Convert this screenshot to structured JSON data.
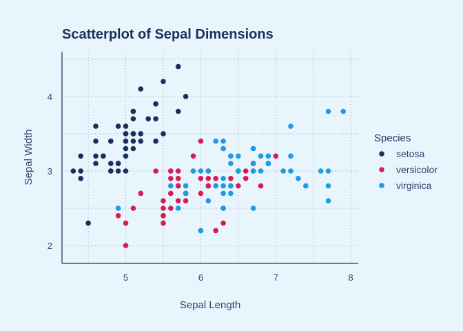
{
  "chart_data": {
    "type": "scatter",
    "title": "Scatterplot of Sepal Dimensions",
    "xlabel": "Sepal Length",
    "ylabel": "Sepal Width",
    "xlim": [
      4.15,
      8.1
    ],
    "ylim": [
      1.76,
      4.6
    ],
    "x_ticks": [
      5,
      6,
      7,
      8
    ],
    "y_ticks": [
      2,
      3,
      4
    ],
    "grid": true,
    "legend": {
      "title": "Species",
      "position": "right"
    },
    "series": [
      {
        "name": "setosa",
        "color": "#1b2f5c",
        "points": [
          [
            5.1,
            3.5
          ],
          [
            4.9,
            3.0
          ],
          [
            4.7,
            3.2
          ],
          [
            4.6,
            3.1
          ],
          [
            5.0,
            3.6
          ],
          [
            5.4,
            3.9
          ],
          [
            4.6,
            3.4
          ],
          [
            5.0,
            3.4
          ],
          [
            4.4,
            2.9
          ],
          [
            4.9,
            3.1
          ],
          [
            5.4,
            3.7
          ],
          [
            4.8,
            3.4
          ],
          [
            4.8,
            3.0
          ],
          [
            4.3,
            3.0
          ],
          [
            5.8,
            4.0
          ],
          [
            5.7,
            4.4
          ],
          [
            5.4,
            3.9
          ],
          [
            5.1,
            3.5
          ],
          [
            5.7,
            3.8
          ],
          [
            5.1,
            3.8
          ],
          [
            5.4,
            3.4
          ],
          [
            5.1,
            3.7
          ],
          [
            4.6,
            3.6
          ],
          [
            5.1,
            3.3
          ],
          [
            4.8,
            3.4
          ],
          [
            5.0,
            3.0
          ],
          [
            5.0,
            3.4
          ],
          [
            5.2,
            3.5
          ],
          [
            5.2,
            3.4
          ],
          [
            4.7,
            3.2
          ],
          [
            4.8,
            3.1
          ],
          [
            5.4,
            3.4
          ],
          [
            5.2,
            4.1
          ],
          [
            5.5,
            4.2
          ],
          [
            4.9,
            3.1
          ],
          [
            5.0,
            3.2
          ],
          [
            5.5,
            3.5
          ],
          [
            4.9,
            3.6
          ],
          [
            4.4,
            3.0
          ],
          [
            5.1,
            3.4
          ],
          [
            5.0,
            3.5
          ],
          [
            4.5,
            2.3
          ],
          [
            4.4,
            3.2
          ],
          [
            5.0,
            3.5
          ],
          [
            5.1,
            3.8
          ],
          [
            4.8,
            3.0
          ],
          [
            5.1,
            3.8
          ],
          [
            4.6,
            3.2
          ],
          [
            5.3,
            3.7
          ],
          [
            5.0,
            3.3
          ]
        ]
      },
      {
        "name": "versicolor",
        "color": "#d81b50",
        "points": [
          [
            7.0,
            3.2
          ],
          [
            6.4,
            3.2
          ],
          [
            6.9,
            3.1
          ],
          [
            5.5,
            2.3
          ],
          [
            6.5,
            2.8
          ],
          [
            5.7,
            2.8
          ],
          [
            6.3,
            3.3
          ],
          [
            4.9,
            2.4
          ],
          [
            6.6,
            2.9
          ],
          [
            5.2,
            2.7
          ],
          [
            5.0,
            2.0
          ],
          [
            5.9,
            3.0
          ],
          [
            6.0,
            2.2
          ],
          [
            6.1,
            2.9
          ],
          [
            5.6,
            2.9
          ],
          [
            6.7,
            3.1
          ],
          [
            5.6,
            3.0
          ],
          [
            5.8,
            2.7
          ],
          [
            6.2,
            2.2
          ],
          [
            5.6,
            2.5
          ],
          [
            5.9,
            3.2
          ],
          [
            6.1,
            2.8
          ],
          [
            6.3,
            2.5
          ],
          [
            6.1,
            2.8
          ],
          [
            6.4,
            2.9
          ],
          [
            6.6,
            3.0
          ],
          [
            6.8,
            2.8
          ],
          [
            6.7,
            3.0
          ],
          [
            6.0,
            2.9
          ],
          [
            5.7,
            2.6
          ],
          [
            5.5,
            2.4
          ],
          [
            5.5,
            2.4
          ],
          [
            5.8,
            2.7
          ],
          [
            6.0,
            2.7
          ],
          [
            5.4,
            3.0
          ],
          [
            6.0,
            3.4
          ],
          [
            6.7,
            3.1
          ],
          [
            6.3,
            2.3
          ],
          [
            5.6,
            3.0
          ],
          [
            5.5,
            2.5
          ],
          [
            5.5,
            2.6
          ],
          [
            6.1,
            3.0
          ],
          [
            5.8,
            2.6
          ],
          [
            5.0,
            2.3
          ],
          [
            5.6,
            2.7
          ],
          [
            5.7,
            3.0
          ],
          [
            5.7,
            2.9
          ],
          [
            6.2,
            2.9
          ],
          [
            5.1,
            2.5
          ],
          [
            5.7,
            2.8
          ]
        ]
      },
      {
        "name": "virginica",
        "color": "#1e9ae6",
        "points": [
          [
            6.3,
            3.3
          ],
          [
            5.8,
            2.7
          ],
          [
            7.1,
            3.0
          ],
          [
            6.3,
            2.9
          ],
          [
            6.5,
            3.0
          ],
          [
            7.6,
            3.0
          ],
          [
            4.9,
            2.5
          ],
          [
            7.3,
            2.9
          ],
          [
            6.7,
            2.5
          ],
          [
            7.2,
            3.6
          ],
          [
            6.5,
            3.2
          ],
          [
            6.4,
            2.7
          ],
          [
            6.8,
            3.0
          ],
          [
            5.7,
            2.5
          ],
          [
            5.8,
            2.8
          ],
          [
            6.4,
            3.2
          ],
          [
            6.5,
            3.0
          ],
          [
            7.7,
            3.8
          ],
          [
            7.7,
            2.6
          ],
          [
            6.0,
            2.2
          ],
          [
            6.9,
            3.2
          ],
          [
            5.6,
            2.8
          ],
          [
            7.7,
            2.8
          ],
          [
            6.3,
            2.7
          ],
          [
            6.7,
            3.3
          ],
          [
            7.2,
            3.2
          ],
          [
            6.2,
            2.8
          ],
          [
            6.1,
            3.0
          ],
          [
            6.4,
            2.8
          ],
          [
            7.2,
            3.0
          ],
          [
            7.4,
            2.8
          ],
          [
            7.9,
            3.8
          ],
          [
            6.4,
            2.8
          ],
          [
            6.3,
            2.8
          ],
          [
            6.1,
            2.6
          ],
          [
            7.7,
            3.0
          ],
          [
            6.3,
            3.4
          ],
          [
            6.4,
            3.1
          ],
          [
            6.0,
            3.0
          ],
          [
            6.9,
            3.1
          ],
          [
            6.7,
            3.1
          ],
          [
            6.9,
            3.1
          ],
          [
            5.8,
            2.7
          ],
          [
            6.8,
            3.2
          ],
          [
            6.7,
            3.3
          ],
          [
            6.7,
            3.0
          ],
          [
            6.3,
            2.5
          ],
          [
            6.5,
            3.0
          ],
          [
            6.2,
            3.4
          ],
          [
            5.9,
            3.0
          ]
        ]
      }
    ]
  }
}
